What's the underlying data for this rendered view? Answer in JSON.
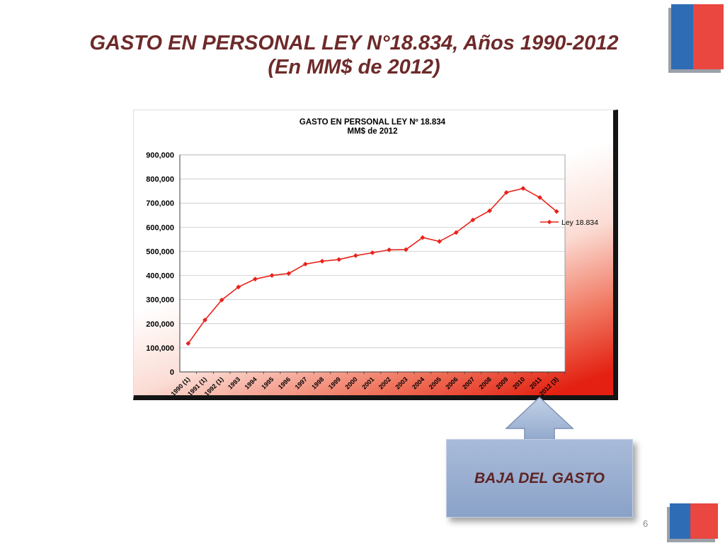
{
  "slide": {
    "title_line1": "GASTO EN PERSONAL LEY N°18.834, Años 1990-2012",
    "title_line2": "(En MM$ de 2012)",
    "page_number": "6",
    "callout_label": "BAJA DEL GASTO",
    "icons": {
      "top_right": "chile-flag-icon",
      "bottom_right": "chile-flag-icon",
      "callout_arrow": "block-arrow-up-icon"
    },
    "colors": {
      "title": "#6e2a2a",
      "line": "#e8221a",
      "flag_blue": "#2e6cb6",
      "flag_red": "#e9473f",
      "callout_fill": "#8ea6ca",
      "chart_shadow": "#141414"
    }
  },
  "chart_data": {
    "type": "line",
    "title": "GASTO EN PERSONAL LEY Nº 18.834",
    "subtitle": "MM$ de 2012",
    "xlabel": "",
    "ylabel": "",
    "ylim": [
      0,
      900000
    ],
    "ytick_step": 100000,
    "ytick_labels": [
      "0",
      "100,000",
      "200,000",
      "300,000",
      "400,000",
      "500,000",
      "600,000",
      "700,000",
      "800,000",
      "900,000"
    ],
    "grid": true,
    "legend_position": "right",
    "categories": [
      "1990 (1)",
      "1991 (1)",
      "1992 (1)",
      "1993",
      "1994",
      "1995",
      "1996",
      "1997",
      "1998",
      "1999",
      "2000",
      "2001",
      "2002",
      "2003",
      "2004",
      "2005",
      "2006",
      "2007",
      "2008",
      "2009",
      "2010",
      "2011",
      "2012 (3)"
    ],
    "series": [
      {
        "name": "Ley 18.834",
        "values": [
          118000,
          215000,
          298000,
          352000,
          385000,
          400000,
          408000,
          447000,
          459000,
          466000,
          482000,
          494000,
          506000,
          507000,
          557000,
          541000,
          578000,
          630000,
          668000,
          744000,
          761000,
          723000,
          665000
        ]
      }
    ]
  }
}
